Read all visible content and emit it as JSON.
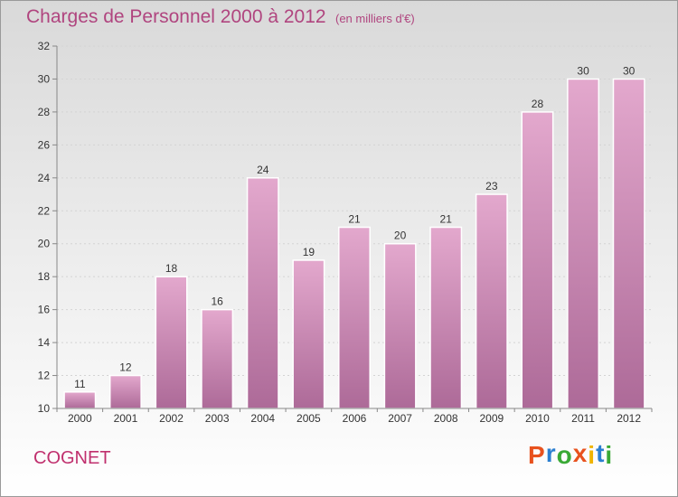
{
  "header": {
    "title": "Charges de Personnel 2000 à 2012",
    "subtitle": "(en milliers d'€)"
  },
  "footer": {
    "commune": "COGNET",
    "logo_text": "Proxiti",
    "logo_colors": [
      "#e8521e",
      "#2b7fd0",
      "#39a935",
      "#e8521e",
      "#f0b400",
      "#2b7fd0",
      "#39a935"
    ]
  },
  "colors": {
    "bar_top": "#e3a8cd",
    "bar_bottom": "#ad6a98",
    "axis": "#888888",
    "grid": "#d4d4d4",
    "text": "#333333"
  },
  "chart_data": {
    "type": "bar",
    "title": "Charges de Personnel 2000 à 2012",
    "subtitle": "(en milliers d'€)",
    "categories": [
      "2000",
      "2001",
      "2002",
      "2003",
      "2004",
      "2005",
      "2006",
      "2007",
      "2008",
      "2009",
      "2010",
      "2011",
      "2012"
    ],
    "values": [
      11,
      12,
      18,
      16,
      24,
      19,
      21,
      20,
      21,
      23,
      28,
      30,
      30
    ],
    "data_labels": [
      "11",
      "12",
      "18",
      "16",
      "24",
      "19",
      "21",
      "20",
      "21",
      "23",
      "28",
      "30",
      "30"
    ],
    "yticks": [
      10,
      12,
      14,
      16,
      18,
      20,
      22,
      24,
      26,
      28,
      30,
      32
    ],
    "ytick_labels": [
      "10",
      "12",
      "14",
      "16",
      "18",
      "20",
      "22",
      "24",
      "26",
      "28",
      "30",
      "32"
    ],
    "ylim": [
      10,
      32
    ],
    "grid": true,
    "legend": "none"
  }
}
